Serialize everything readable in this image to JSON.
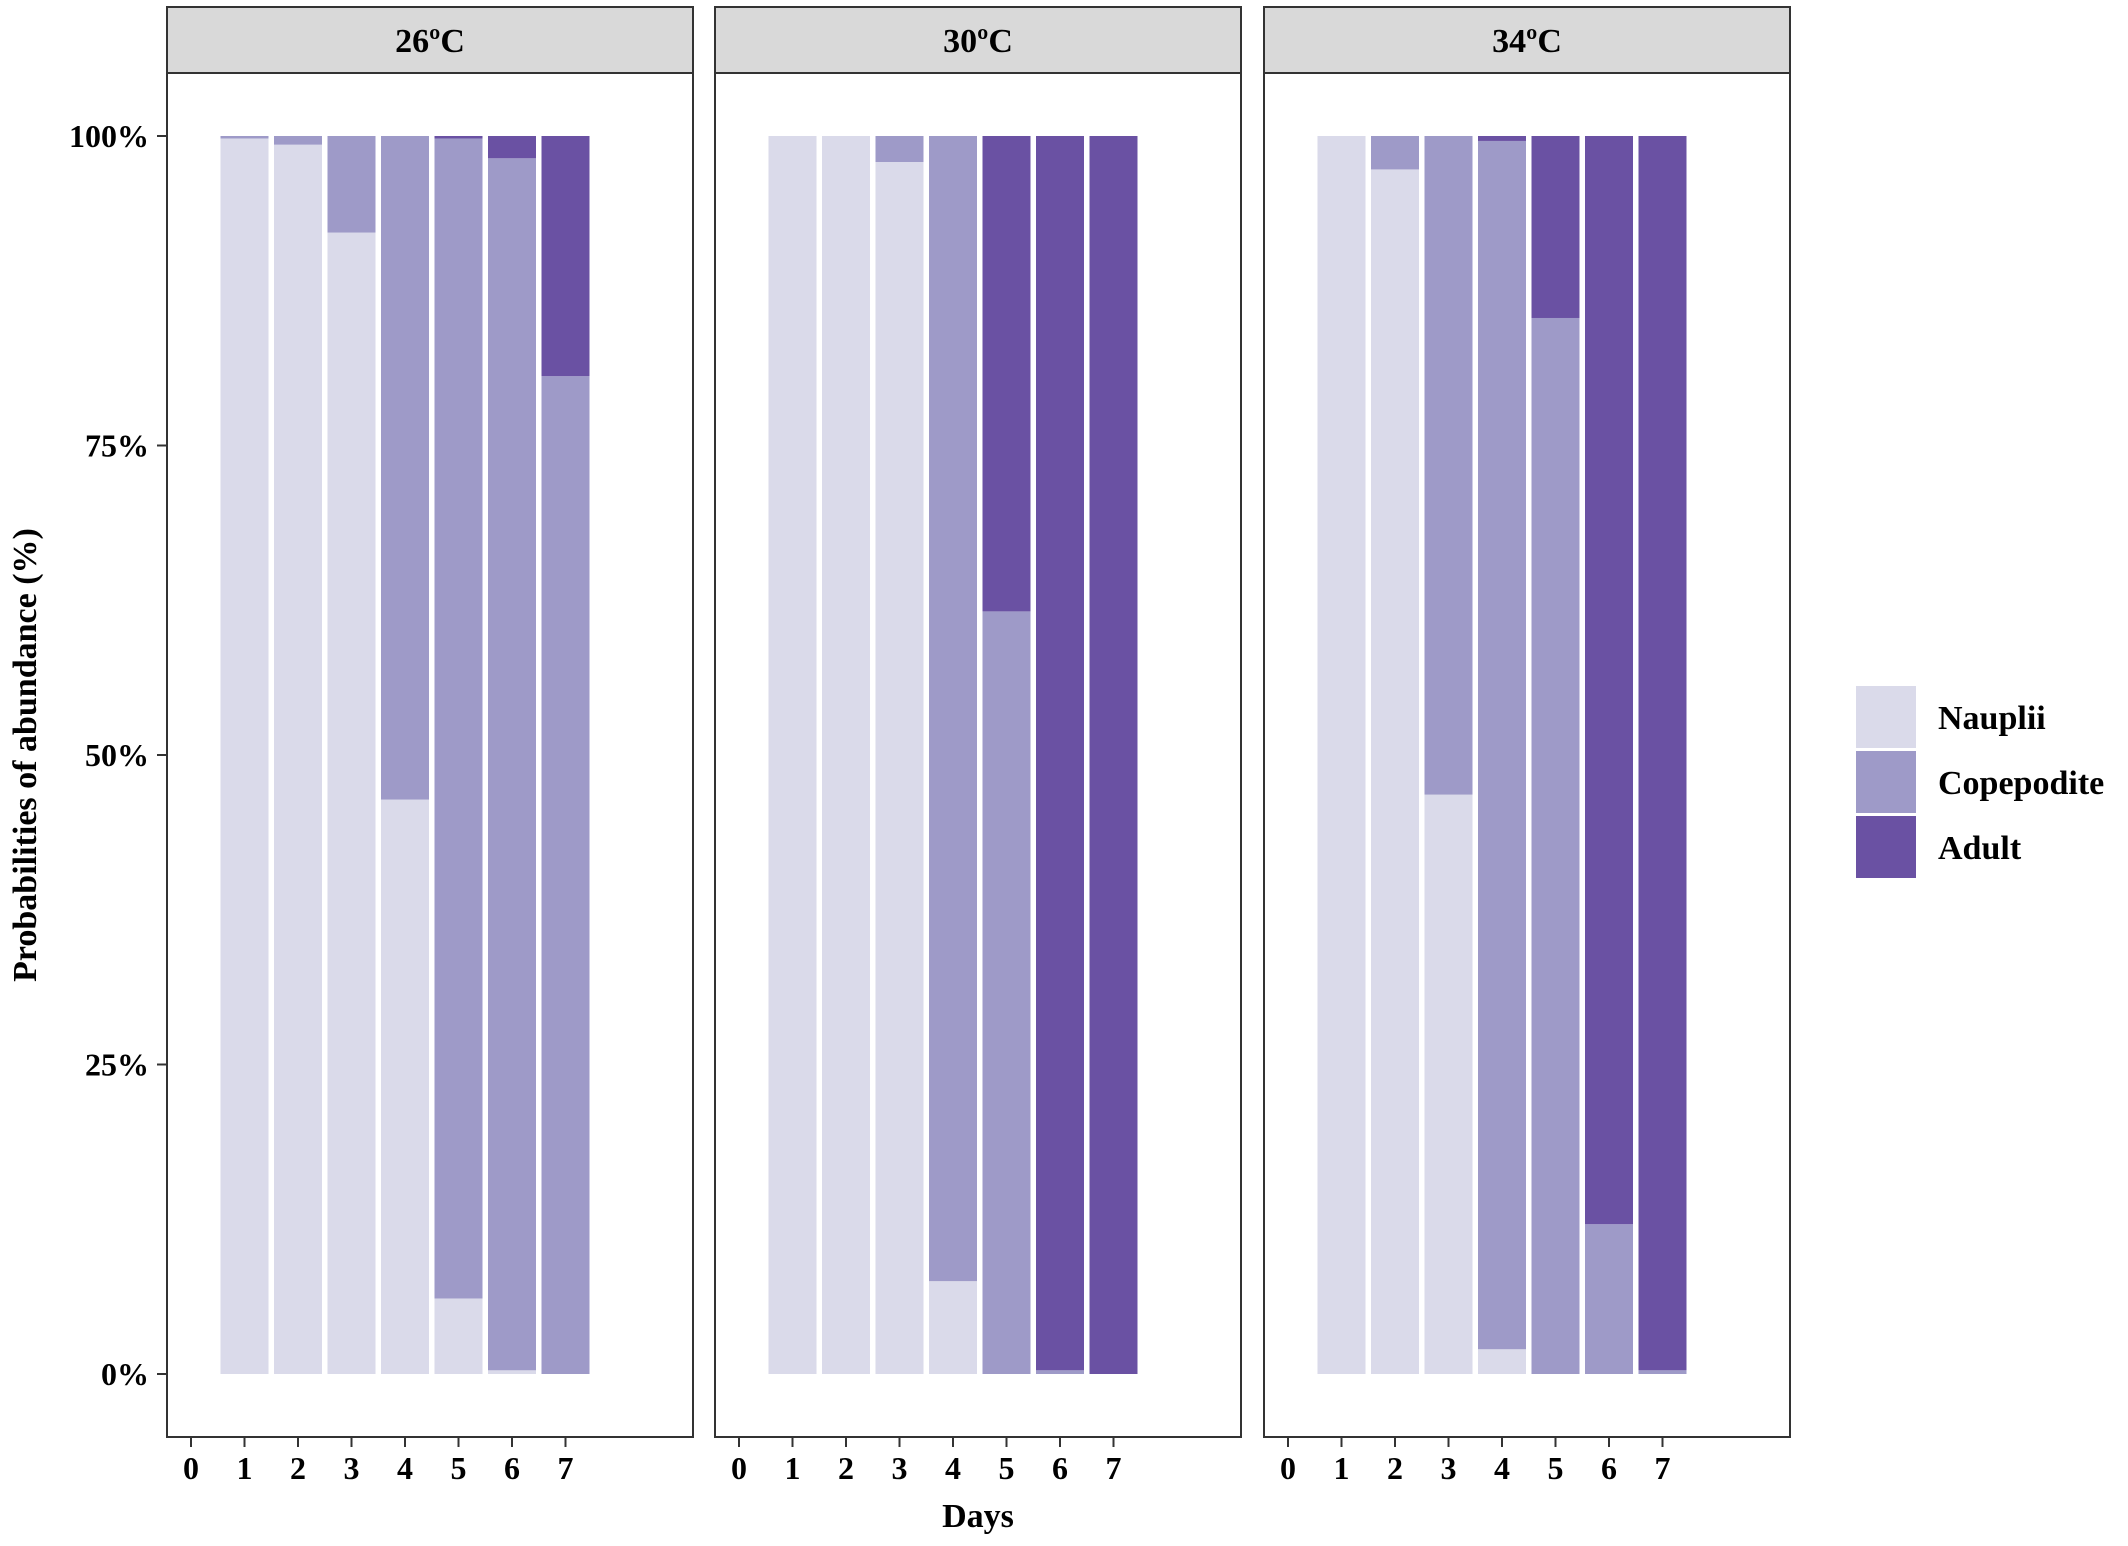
{
  "chart_data": {
    "type": "bar",
    "stacked": true,
    "percent_scale": true,
    "xlabel": "Days",
    "ylabel": "Probabilities of abundance (%)",
    "x_ticks": [
      "0",
      "1",
      "2",
      "3",
      "4",
      "5",
      "6",
      "7"
    ],
    "y_ticks": [
      "0%",
      "25%",
      "50%",
      "75%",
      "100%"
    ],
    "ylim": [
      0,
      100
    ],
    "grid": false,
    "legend_position": "right",
    "series_colors": {
      "Nauplii": "#dadaea",
      "Copepodite": "#9e9ac8",
      "Adult": "#6a51a3"
    },
    "legend": [
      {
        "name": "Nauplii",
        "color": "#dadaea"
      },
      {
        "name": "Copepodite",
        "color": "#9e9ac8"
      },
      {
        "name": "Adult",
        "color": "#6a51a3"
      }
    ],
    "panels": [
      {
        "strip": "26ºC",
        "days": [
          1,
          2,
          3,
          4,
          5,
          6,
          7
        ],
        "series": [
          {
            "name": "Nauplii",
            "values": [
              99.8,
              99.3,
              92.2,
              46.4,
              6.1,
              0.3,
              0.0
            ]
          },
          {
            "name": "Copepodite",
            "values": [
              0.2,
              0.7,
              7.8,
              53.6,
              93.7,
              97.9,
              80.6
            ]
          },
          {
            "name": "Adult",
            "values": [
              0.0,
              0.0,
              0.0,
              0.0,
              0.2,
              1.8,
              19.4
            ]
          }
        ]
      },
      {
        "strip": "30ºC",
        "days": [
          1,
          2,
          3,
          4,
          5,
          6,
          7
        ],
        "series": [
          {
            "name": "Nauplii",
            "values": [
              100.0,
              100.0,
              97.9,
              7.5,
              0.0,
              0.0,
              0.0
            ]
          },
          {
            "name": "Copepodite",
            "values": [
              0.0,
              0.0,
              2.1,
              92.5,
              61.6,
              0.3,
              0.0
            ]
          },
          {
            "name": "Adult",
            "values": [
              0.0,
              0.0,
              0.0,
              0.0,
              38.4,
              99.7,
              100.0
            ]
          }
        ]
      },
      {
        "strip": "34ºC",
        "days": [
          1,
          2,
          3,
          4,
          5,
          6,
          7
        ],
        "series": [
          {
            "name": "Nauplii",
            "values": [
              100.0,
              97.3,
              46.8,
              2.0,
              0.0,
              0.0,
              0.0
            ]
          },
          {
            "name": "Copepodite",
            "values": [
              0.0,
              2.7,
              53.2,
              97.6,
              85.3,
              12.1,
              0.3
            ]
          },
          {
            "name": "Adult",
            "values": [
              0.0,
              0.0,
              0.0,
              0.4,
              14.7,
              87.9,
              99.7
            ]
          }
        ]
      }
    ]
  }
}
